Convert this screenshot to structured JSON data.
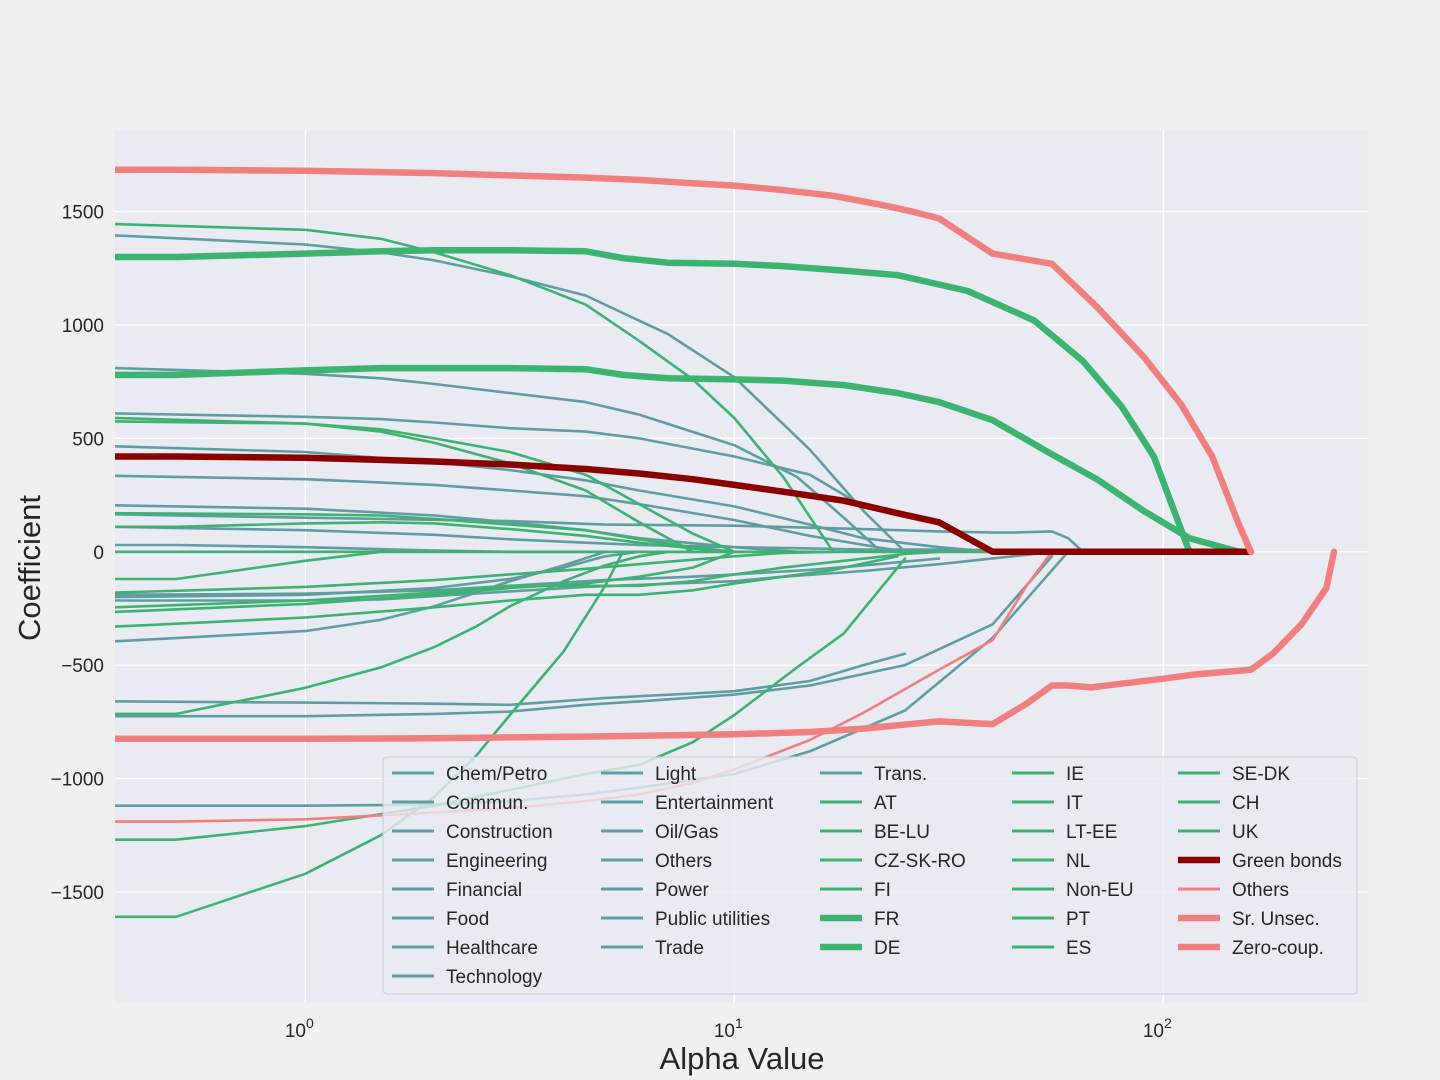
{
  "chart_data": {
    "type": "line",
    "title": "",
    "xlabel": "Alpha Value",
    "ylabel": "Coefficient",
    "xscale": "log",
    "xlim": [
      0.36,
      300
    ],
    "ylim": [
      -1990,
      1860
    ],
    "xticks": [
      {
        "value": 1,
        "base": "10",
        "exp": "0"
      },
      {
        "value": 10,
        "base": "10",
        "exp": "1"
      },
      {
        "value": 100,
        "base": "10",
        "exp": "2"
      }
    ],
    "yticks": [
      {
        "value": 1500,
        "label": "1500"
      },
      {
        "value": 1000,
        "label": "1000"
      },
      {
        "value": 500,
        "label": "500"
      },
      {
        "value": 0,
        "label": "0"
      },
      {
        "value": -500,
        "label": "−500"
      },
      {
        "value": -1000,
        "label": "−1000"
      },
      {
        "value": -1500,
        "label": "−1500"
      }
    ],
    "grid": true,
    "legend_position": "lower-right",
    "legend_columns": 5,
    "colors": {
      "sector": "#5f9ea0",
      "country": "#3cb371",
      "green_bonds": "#8b0000",
      "bond_type": "#f08080"
    },
    "series": [
      {
        "name": "Chem/Petro",
        "group": "sector",
        "x": [
          0.36,
          1,
          1.5,
          3,
          4.5,
          10,
          13,
          20,
          30,
          50,
          60
        ],
        "y": [
          -215,
          -215,
          -210,
          -175,
          -155,
          -130,
          -110,
          -85,
          -55,
          -10,
          0
        ]
      },
      {
        "name": "Commun.",
        "group": "sector",
        "x": [
          0.36,
          1,
          2,
          3,
          4.5,
          6,
          10,
          15,
          25,
          40,
          60
        ],
        "y": [
          -1120,
          -1120,
          -1115,
          -1100,
          -1070,
          -1040,
          -980,
          -880,
          -700,
          -380,
          0
        ]
      },
      {
        "name": "Construction",
        "group": "sector",
        "x": [
          0.36,
          1,
          1.5,
          2,
          3,
          4.5,
          7,
          10,
          15,
          20,
          25
        ],
        "y": [
          1395,
          1355,
          1320,
          1285,
          1215,
          1130,
          960,
          770,
          450,
          180,
          0
        ]
      },
      {
        "name": "Engineering",
        "group": "sector",
        "x": [
          0.36,
          1,
          1.5,
          2,
          3,
          4.5,
          6,
          10,
          14,
          18,
          22
        ],
        "y": [
          810,
          785,
          765,
          740,
          700,
          660,
          605,
          470,
          330,
          150,
          0
        ]
      },
      {
        "name": "Financial",
        "group": "sector",
        "x": [
          0.36,
          1,
          2,
          3,
          5,
          8,
          10,
          15,
          20,
          30
        ],
        "y": [
          -190,
          -185,
          -170,
          -150,
          -125,
          -110,
          -100,
          -80,
          -60,
          -30
        ]
      },
      {
        "name": "Food",
        "group": "sector",
        "x": [
          0.36,
          1,
          2,
          3,
          5,
          8,
          10,
          15,
          20,
          25
        ],
        "y": [
          -660,
          -665,
          -670,
          -675,
          -645,
          -625,
          -615,
          -570,
          -500,
          -450
        ]
      },
      {
        "name": "Healthcare",
        "group": "sector",
        "x": [
          0.36,
          1,
          2,
          3,
          4.5,
          6,
          10,
          15,
          25,
          40,
          55
        ],
        "y": [
          -725,
          -725,
          -715,
          -705,
          -675,
          -660,
          -630,
          -590,
          -500,
          -320,
          -20
        ]
      },
      {
        "name": "Technology",
        "group": "sector",
        "x": [
          0.36,
          1,
          1.5,
          2,
          3,
          4.5,
          6,
          10,
          15,
          20
        ],
        "y": [
          610,
          595,
          585,
          570,
          545,
          530,
          500,
          420,
          340,
          200
        ]
      },
      {
        "name": "Light",
        "group": "sector",
        "x": [
          0.36,
          1,
          2,
          3,
          4.5,
          6,
          10,
          15,
          20,
          30,
          40
        ],
        "y": [
          465,
          440,
          395,
          360,
          315,
          270,
          200,
          120,
          60,
          20,
          0
        ]
      },
      {
        "name": "Entertainment",
        "group": "sector",
        "x": [
          0.36,
          1,
          2,
          3,
          4.5,
          6,
          10,
          15,
          25
        ],
        "y": [
          335,
          320,
          295,
          270,
          245,
          210,
          140,
          70,
          0
        ]
      },
      {
        "name": "Oil/Gas",
        "group": "sector",
        "x": [
          0.36,
          1,
          2,
          3,
          4.5,
          6,
          10,
          14
        ],
        "y": [
          205,
          190,
          160,
          130,
          95,
          60,
          20,
          0
        ]
      },
      {
        "name": " Others",
        "group": "sector",
        "x": [
          0.36,
          0.5,
          1,
          2,
          3,
          5,
          8,
          10,
          20,
          30,
          40,
          55,
          60,
          65
        ],
        "y": [
          30,
          30,
          20,
          5,
          0,
          0,
          0,
          0,
          0,
          0,
          0,
          0,
          0,
          0
        ]
      },
      {
        "name": "Power",
        "group": "sector",
        "x": [
          0.36,
          1,
          2,
          3,
          4,
          5,
          6,
          10
        ],
        "y": [
          -200,
          -190,
          -160,
          -120,
          -70,
          -20,
          0,
          0
        ]
      },
      {
        "name": "Public utilities",
        "group": "sector",
        "x": [
          0.36,
          1,
          1.5,
          2,
          2.5,
          3,
          4,
          5
        ],
        "y": [
          -395,
          -350,
          -300,
          -240,
          -180,
          -130,
          -60,
          0
        ]
      },
      {
        "name": "Trade",
        "group": "sector",
        "x": [
          0.36,
          1,
          2,
          3,
          4.5,
          6,
          10,
          15,
          20,
          30,
          45,
          55,
          65
        ],
        "y": [
          110,
          95,
          75,
          55,
          40,
          30,
          20,
          15,
          10,
          10,
          5,
          0,
          0
        ]
      },
      {
        "name": "Trans.",
        "group": "sector",
        "x": [
          0.36,
          1,
          3,
          5,
          10,
          20,
          30,
          40,
          45,
          55,
          60,
          65
        ],
        "y": [
          165,
          150,
          135,
          120,
          115,
          100,
          90,
          85,
          85,
          90,
          60,
          0
        ]
      },
      {
        "name": "AT",
        "group": "country",
        "x": [
          0.36,
          1,
          1.5,
          2,
          3,
          4.5,
          6,
          8,
          10,
          13,
          17
        ],
        "y": [
          1445,
          1420,
          1380,
          1320,
          1220,
          1090,
          930,
          760,
          590,
          330,
          0
        ]
      },
      {
        "name": "BE-LU",
        "group": "country",
        "x": [
          0.36,
          1,
          1.5,
          2,
          3,
          4.5,
          6,
          8,
          10
        ],
        "y": [
          575,
          565,
          540,
          500,
          440,
          340,
          210,
          80,
          0
        ]
      },
      {
        "name": "CZ-SK-RO",
        "group": "country",
        "x": [
          0.36,
          0.5,
          1,
          1.5,
          2,
          3,
          4,
          5
        ],
        "y": [
          -120,
          -120,
          -40,
          0,
          0,
          0,
          0,
          0
        ]
      },
      {
        "name": "FI",
        "group": "country",
        "x": [
          0.36,
          0.5,
          1,
          1.5,
          2,
          2.5,
          3,
          4,
          5,
          5.5
        ],
        "y": [
          -1610,
          -1610,
          -1420,
          -1250,
          -1080,
          -900,
          -720,
          -440,
          -150,
          0
        ]
      },
      {
        "name": "FR",
        "group": "country",
        "width": "thick",
        "x": [
          0.36,
          0.5,
          1,
          1.5,
          2,
          3,
          4.5,
          5.5,
          7,
          10,
          13,
          18,
          24,
          35,
          50,
          65,
          80,
          95,
          115
        ],
        "y": [
          1300,
          1300,
          1315,
          1325,
          1330,
          1330,
          1325,
          1295,
          1275,
          1270,
          1260,
          1240,
          1220,
          1150,
          1020,
          840,
          640,
          420,
          0
        ]
      },
      {
        "name": "DE",
        "group": "country",
        "width": "thick",
        "x": [
          0.36,
          0.5,
          1,
          1.5,
          2,
          3,
          4.5,
          5.5,
          7,
          10,
          13,
          18,
          24,
          30,
          40,
          55,
          70,
          90,
          115,
          150,
          160
        ],
        "y": [
          780,
          780,
          800,
          810,
          810,
          810,
          805,
          780,
          765,
          760,
          755,
          735,
          700,
          660,
          580,
          430,
          320,
          180,
          60,
          0,
          0
        ]
      },
      {
        "name": "IE",
        "group": "country",
        "x": [
          0.36,
          1,
          1.5,
          2,
          3,
          4.5,
          6,
          8
        ],
        "y": [
          590,
          565,
          530,
          480,
          390,
          270,
          130,
          0
        ]
      },
      {
        "name": "IT",
        "group": "country",
        "x": [
          0.36,
          0.5,
          1,
          1.5,
          2,
          3,
          4.5,
          6,
          8,
          10,
          13
        ],
        "y": [
          110,
          110,
          125,
          130,
          125,
          100,
          70,
          40,
          15,
          0,
          0
        ]
      },
      {
        "name": "LT-EE",
        "group": "country",
        "x": [
          0.36,
          1,
          2,
          3,
          4.5,
          6,
          8,
          10,
          13,
          18,
          25,
          30
        ],
        "y": [
          -245,
          -215,
          -180,
          -150,
          -150,
          -150,
          -130,
          -100,
          -70,
          -40,
          -10,
          0
        ]
      },
      {
        "name": "NL",
        "group": "country",
        "x": [
          0.36,
          0.5,
          1,
          1.5,
          2,
          2.5,
          3,
          4,
          5,
          6,
          7
        ],
        "y": [
          -715,
          -715,
          -600,
          -510,
          -420,
          -330,
          -240,
          -130,
          -60,
          -20,
          0
        ]
      },
      {
        "name": "Non-EU",
        "group": "country",
        "x": [
          0.36,
          0.5,
          1,
          2,
          3,
          4.5,
          6,
          8,
          10,
          14,
          18,
          25
        ],
        "y": [
          -1270,
          -1270,
          -1210,
          -1120,
          -1050,
          -980,
          -940,
          -840,
          -720,
          -510,
          -360,
          -30
        ]
      },
      {
        "name": "PT",
        "group": "country",
        "x": [
          0.36,
          1,
          2,
          3,
          4.5,
          6,
          8,
          10,
          13,
          17,
          24
        ],
        "y": [
          -330,
          -290,
          -245,
          -215,
          -190,
          -190,
          -170,
          -140,
          -110,
          -80,
          -20
        ]
      },
      {
        "name": "ES",
        "group": "country",
        "x": [
          0.36,
          1,
          2,
          3,
          4.5,
          6,
          8,
          10,
          13,
          17
        ],
        "y": [
          -180,
          -155,
          -125,
          -100,
          -75,
          -55,
          -35,
          -20,
          -5,
          0
        ]
      },
      {
        "name": "SE-DK",
        "group": "country",
        "x": [
          0.36,
          1,
          2,
          3,
          4.5,
          6,
          8,
          10
        ],
        "y": [
          -265,
          -230,
          -190,
          -160,
          -140,
          -110,
          -70,
          0
        ]
      },
      {
        "name": "CH",
        "group": "country",
        "x": [
          0.36,
          1,
          2,
          4,
          8,
          15,
          30,
          60,
          160
        ],
        "y": [
          0,
          0,
          0,
          0,
          0,
          0,
          0,
          0,
          0
        ]
      },
      {
        "name": "UK",
        "group": "country",
        "x": [
          0.36,
          1,
          1.5,
          2,
          3,
          4.5,
          6,
          8,
          10
        ],
        "y": [
          170,
          165,
          160,
          145,
          120,
          95,
          55,
          20,
          0
        ]
      },
      {
        "name": "Green bonds",
        "group": "green_bonds",
        "width": "thick",
        "x": [
          0.36,
          0.5,
          1,
          1.5,
          2,
          3,
          4.5,
          6,
          8,
          10,
          13,
          18,
          24,
          30,
          40,
          55,
          80,
          120,
          160
        ],
        "y": [
          420,
          420,
          415,
          405,
          398,
          385,
          365,
          345,
          320,
          295,
          265,
          225,
          170,
          130,
          0,
          0,
          0,
          0,
          0
        ]
      },
      {
        "name": "Others",
        "group": "bond_type",
        "x": [
          0.36,
          0.5,
          1,
          2,
          3,
          4.5,
          6,
          8,
          10,
          15,
          20,
          30,
          40,
          48,
          55,
          60
        ],
        "y": [
          -1190,
          -1190,
          -1180,
          -1150,
          -1130,
          -1100,
          -1070,
          -1020,
          -960,
          -830,
          -710,
          -520,
          -390,
          -150,
          0,
          0
        ]
      },
      {
        "name": "Sr. Unsec.",
        "group": "bond_type",
        "width": "thick",
        "x": [
          0.36,
          0.5,
          1,
          2,
          3,
          4.5,
          6,
          8,
          10,
          13,
          17,
          22,
          26,
          30,
          40,
          55,
          70,
          90,
          110,
          130,
          150,
          160
        ],
        "y": [
          1685,
          1685,
          1680,
          1670,
          1660,
          1650,
          1640,
          1625,
          1615,
          1595,
          1570,
          1530,
          1500,
          1470,
          1315,
          1270,
          1080,
          860,
          650,
          420,
          120,
          0
        ]
      },
      {
        "name": "Zero-coup.",
        "group": "bond_type",
        "width": "thick",
        "x": [
          0.36,
          1,
          2,
          4.5,
          10,
          15,
          20,
          30,
          40,
          48,
          55,
          60,
          68,
          80,
          100,
          120,
          160,
          180,
          210,
          240,
          250
        ],
        "y": [
          -825,
          -825,
          -822,
          -815,
          -805,
          -795,
          -780,
          -748,
          -760,
          -670,
          -590,
          -590,
          -598,
          -582,
          -560,
          -540,
          -520,
          -450,
          -320,
          -160,
          0
        ]
      }
    ]
  }
}
